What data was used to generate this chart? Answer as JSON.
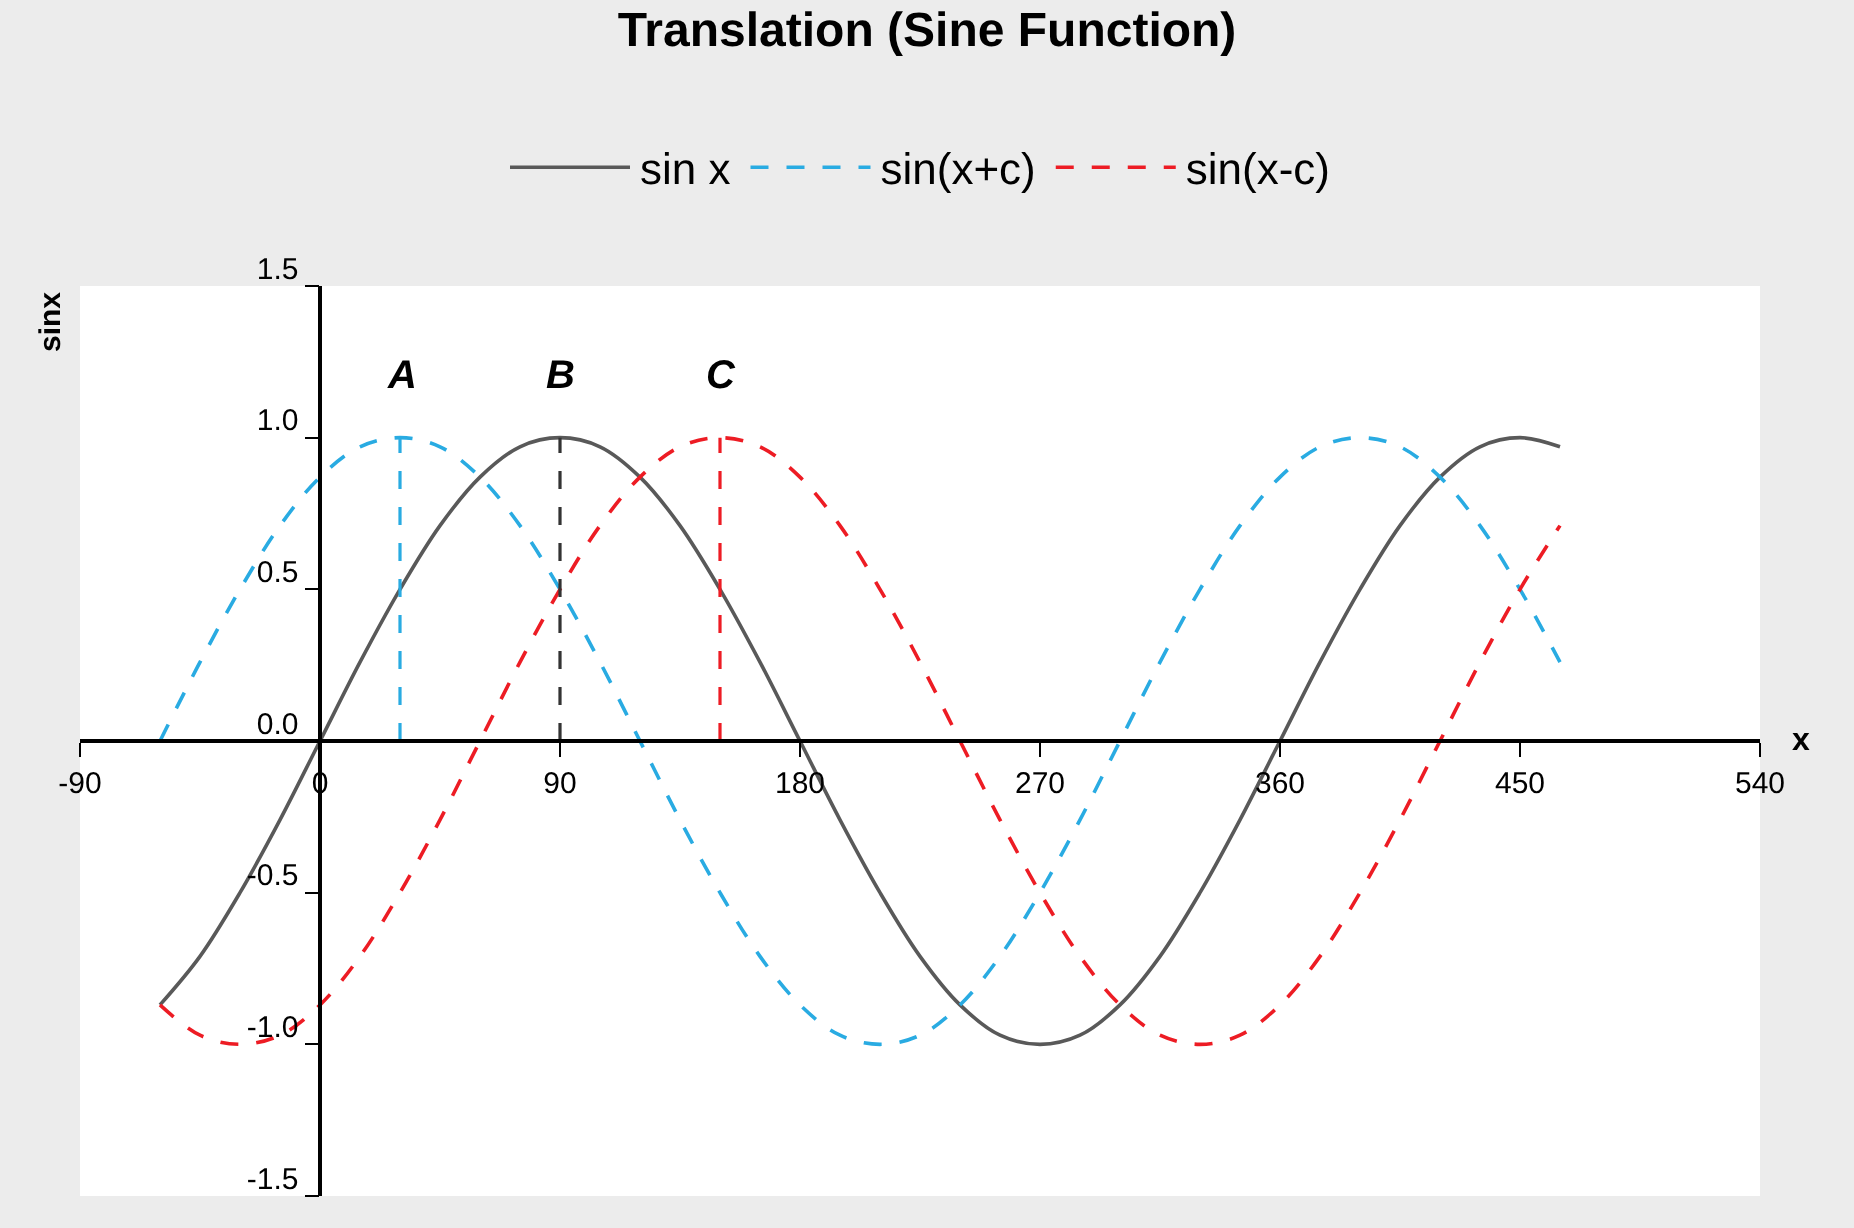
{
  "chart_data": {
    "type": "line",
    "title": "Translation (Sine Function)",
    "xlabel": "x",
    "ylabel": "sinx",
    "x": [
      -60,
      -45,
      -30,
      -15,
      0,
      15,
      30,
      45,
      60,
      75,
      90,
      105,
      120,
      135,
      150,
      165,
      180,
      195,
      210,
      225,
      240,
      255,
      270,
      285,
      300,
      315,
      330,
      345,
      360,
      375,
      390,
      405,
      420,
      435,
      450,
      465
    ],
    "series": [
      {
        "name": "sin x",
        "color": "#595959",
        "line_style": "solid",
        "values": [
          -0.87,
          -0.71,
          -0.5,
          -0.26,
          0,
          0.26,
          0.5,
          0.71,
          0.87,
          0.97,
          1,
          0.97,
          0.87,
          0.71,
          0.5,
          0.26,
          0,
          -0.26,
          -0.5,
          -0.71,
          -0.87,
          -0.97,
          -1,
          -0.97,
          -0.87,
          -0.71,
          -0.5,
          -0.26,
          0,
          0.26,
          0.5,
          0.71,
          0.87,
          0.97,
          1,
          0.97
        ]
      },
      {
        "name": "sin(x+c)",
        "color": "#29abe2",
        "line_style": "dashed",
        "values": [
          0,
          0.26,
          0.5,
          0.71,
          0.87,
          0.97,
          1,
          0.97,
          0.87,
          0.71,
          0.5,
          0.26,
          0,
          -0.26,
          -0.5,
          -0.71,
          -0.87,
          -0.97,
          -1,
          -0.97,
          -0.87,
          -0.71,
          -0.5,
          -0.26,
          0,
          0.26,
          0.5,
          0.71,
          0.87,
          0.97,
          1,
          0.97,
          0.87,
          0.71,
          0.5,
          0.26
        ]
      },
      {
        "name": "sin(x-c)",
        "color": "#ed1c24",
        "line_style": "dashed",
        "values": [
          -0.87,
          -0.97,
          -1,
          -0.97,
          -0.87,
          -0.71,
          -0.5,
          -0.26,
          0,
          0.26,
          0.5,
          0.71,
          0.87,
          0.97,
          1,
          0.97,
          0.87,
          0.71,
          0.5,
          0.26,
          0,
          -0.26,
          -0.5,
          -0.71,
          -0.87,
          -0.97,
          -1,
          -0.97,
          -0.87,
          -0.71,
          -0.5,
          -0.26,
          0,
          0.26,
          0.5,
          0.71
        ]
      },
      {
        "x": [
          30,
          30
        ],
        "color": "#29abe2",
        "line_style": "dashed",
        "values": [
          0,
          1
        ]
      },
      {
        "x": [
          90,
          90
        ],
        "color": "#333333",
        "line_style": "dashed",
        "values": [
          0,
          1
        ]
      },
      {
        "x": [
          150,
          150
        ],
        "color": "#ed1c24",
        "line_style": "dashed",
        "values": [
          0,
          1
        ]
      }
    ],
    "annotations": [
      "A",
      "B",
      "C"
    ],
    "xlim": [
      -90,
      540
    ],
    "xticks": [
      -90,
      0,
      90,
      180,
      270,
      360,
      450,
      540
    ],
    "ylim": [
      -1.5,
      1.5
    ],
    "yticks": [
      {
        "value": -1.5,
        "label": "-1.5"
      },
      {
        "value": -1,
        "label": "-1.0"
      },
      {
        "value": -0.5,
        "label": "-0.5"
      },
      {
        "value": 0,
        "label": "0.0"
      },
      {
        "value": 0.5,
        "label": "0.5"
      },
      {
        "value": 1,
        "label": "1.0"
      },
      {
        "value": 1.5,
        "label": "1.5"
      }
    ],
    "legend": "top",
    "marker": "none"
  }
}
